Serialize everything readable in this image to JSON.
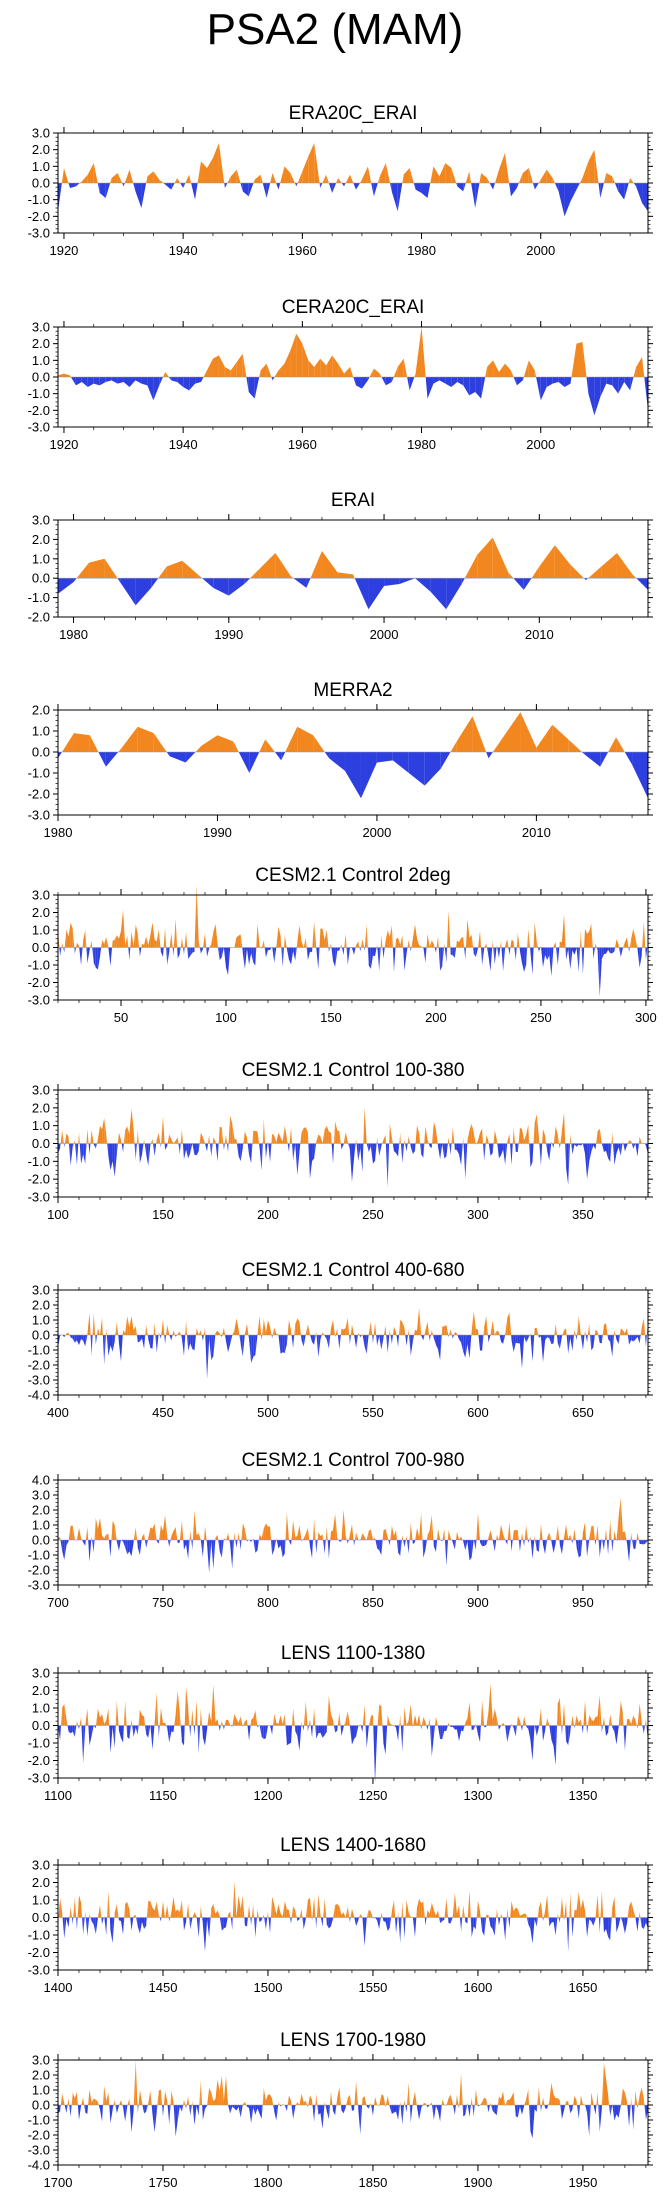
{
  "page_title": "PSA2 (MAM)",
  "colors": {
    "positive": "#F2861F",
    "negative": "#2E3FE0",
    "axis": "#000000"
  },
  "chart_data": [
    {
      "type": "area",
      "title": "ERA20C_ERAI",
      "xlim": [
        1919,
        2018
      ],
      "xticks": [
        1920,
        1940,
        1960,
        1980,
        2000
      ],
      "ylim": [
        -3.0,
        3.0
      ],
      "yticks": [
        3.0,
        2.0,
        1.0,
        0.0,
        -1.0,
        -2.0,
        -3.0
      ],
      "ytick_labels": [
        "3.0",
        "2.0",
        "1.0",
        "0.0",
        "-1.0",
        "-2.0",
        "-3.0"
      ],
      "x": [
        1919,
        1920,
        1921,
        1922,
        1923,
        1924,
        1925,
        1926,
        1927,
        1928,
        1929,
        1930,
        1931,
        1932,
        1933,
        1934,
        1935,
        1936,
        1937,
        1938,
        1939,
        1940,
        1941,
        1942,
        1943,
        1944,
        1945,
        1946,
        1947,
        1948,
        1949,
        1950,
        1951,
        1952,
        1953,
        1954,
        1955,
        1956,
        1957,
        1958,
        1959,
        1960,
        1961,
        1962,
        1963,
        1964,
        1965,
        1966,
        1967,
        1968,
        1969,
        1970,
        1971,
        1972,
        1973,
        1974,
        1975,
        1976,
        1977,
        1978,
        1979,
        1980,
        1981,
        1982,
        1983,
        1984,
        1985,
        1986,
        1987,
        1988,
        1989,
        1990,
        1991,
        1992,
        1993,
        1994,
        1995,
        1996,
        1997,
        1998,
        1999,
        2000,
        2001,
        2002,
        2003,
        2004,
        2005,
        2006,
        2007,
        2008,
        2009,
        2010,
        2011,
        2012,
        2013,
        2014,
        2015,
        2016,
        2017,
        2018
      ],
      "values": [
        -1.7,
        0.9,
        -0.3,
        -0.2,
        0.1,
        0.5,
        1.2,
        -0.6,
        -0.9,
        0.3,
        0.6,
        -0.2,
        0.8,
        -0.5,
        -1.5,
        0.4,
        0.7,
        0.2,
        -0.1,
        -0.4,
        0.3,
        -0.3,
        0.5,
        -1.0,
        1.3,
        0.9,
        1.5,
        2.4,
        -0.3,
        0.4,
        0.8,
        -0.5,
        -0.8,
        0.2,
        0.5,
        -0.9,
        0.6,
        -0.4,
        1.0,
        0.6,
        -0.2,
        0.7,
        1.6,
        2.4,
        -0.3,
        0.5,
        -0.6,
        0.3,
        -0.2,
        0.5,
        -0.4,
        0.2,
        1.0,
        -0.8,
        0.4,
        1.2,
        -0.5,
        -1.7,
        0.5,
        0.9,
        -0.4,
        -0.6,
        -0.9,
        1.0,
        0.4,
        1.2,
        0.9,
        -0.2,
        -0.5,
        0.7,
        -1.5,
        0.6,
        0.3,
        -0.4,
        0.8,
        1.8,
        -0.8,
        -0.3,
        0.6,
        0.9,
        -0.4,
        0.2,
        0.8,
        0.3,
        -0.5,
        -2.0,
        -1.1,
        -0.4,
        0.3,
        1.3,
        2.0,
        -0.9,
        0.6,
        0.4,
        -0.5,
        -1.0,
        0.3,
        -0.2,
        -1.2,
        -1.7
      ]
    },
    {
      "type": "area",
      "title": "CERA20C_ERAI",
      "xlim": [
        1919,
        2018
      ],
      "xticks": [
        1920,
        1940,
        1960,
        1980,
        2000
      ],
      "ylim": [
        -3.0,
        3.0
      ],
      "yticks": [
        3.0,
        2.0,
        1.0,
        0.0,
        -1.0,
        -2.0,
        -3.0
      ],
      "ytick_labels": [
        "3.0",
        "2.0",
        "1.0",
        "0.0",
        "-1.0",
        "-2.0",
        "-3.0"
      ],
      "x": [
        1919,
        1920,
        1921,
        1922,
        1923,
        1924,
        1925,
        1926,
        1927,
        1928,
        1929,
        1930,
        1931,
        1932,
        1933,
        1934,
        1935,
        1936,
        1937,
        1938,
        1939,
        1940,
        1941,
        1942,
        1943,
        1944,
        1945,
        1946,
        1947,
        1948,
        1949,
        1950,
        1951,
        1952,
        1953,
        1954,
        1955,
        1956,
        1957,
        1958,
        1959,
        1960,
        1961,
        1962,
        1963,
        1964,
        1965,
        1966,
        1967,
        1968,
        1969,
        1970,
        1971,
        1972,
        1973,
        1974,
        1975,
        1976,
        1977,
        1978,
        1979,
        1980,
        1981,
        1982,
        1983,
        1984,
        1985,
        1986,
        1987,
        1988,
        1989,
        1990,
        1991,
        1992,
        1993,
        1994,
        1995,
        1996,
        1997,
        1998,
        1999,
        2000,
        2001,
        2002,
        2003,
        2004,
        2005,
        2006,
        2007,
        2008,
        2009,
        2010,
        2011,
        2012,
        2013,
        2014,
        2015,
        2016,
        2017,
        2018
      ],
      "values": [
        0.1,
        0.2,
        0.1,
        -0.5,
        -0.3,
        -0.6,
        -0.4,
        -0.5,
        -0.3,
        -0.2,
        -0.4,
        -0.3,
        -0.6,
        -0.2,
        -0.4,
        -0.5,
        -1.4,
        -0.5,
        0.3,
        -0.2,
        -0.3,
        -0.6,
        -0.8,
        -0.4,
        -0.3,
        0.4,
        1.1,
        1.3,
        0.6,
        0.4,
        0.9,
        1.4,
        -0.9,
        -1.3,
        0.4,
        0.8,
        -0.2,
        0.4,
        0.8,
        1.6,
        2.6,
        2.0,
        1.0,
        0.6,
        1.1,
        0.7,
        1.3,
        0.8,
        0.2,
        0.6,
        -0.5,
        -0.7,
        -0.2,
        0.5,
        0.2,
        -0.5,
        -0.3,
        0.6,
        1.1,
        -0.8,
        0.2,
        3.0,
        -1.3,
        -0.4,
        -0.2,
        -0.4,
        -0.6,
        -0.3,
        -0.5,
        -1.1,
        -0.9,
        -1.3,
        0.6,
        1.0,
        0.3,
        0.8,
        0.4,
        -0.5,
        -0.2,
        1.0,
        0.4,
        -1.4,
        -0.6,
        -0.4,
        -0.3,
        -0.6,
        -0.4,
        2.0,
        2.1,
        -1.0,
        -2.3,
        -1.2,
        -0.4,
        -0.5,
        -1.0,
        -0.3,
        -0.8,
        0.6,
        1.2,
        -2.0
      ]
    },
    {
      "type": "area",
      "title": "ERAI",
      "xlim": [
        1979,
        2017
      ],
      "xticks": [
        1980,
        1990,
        2000,
        2010
      ],
      "ylim": [
        -2.0,
        3.0
      ],
      "yticks": [
        3.0,
        2.0,
        1.0,
        0.0,
        -1.0,
        -2.0
      ],
      "ytick_labels": [
        "3.0",
        "2.0",
        "1.0",
        "0.0",
        "-1.0",
        "-2.0"
      ],
      "x": [
        1979,
        1980,
        1981,
        1982,
        1983,
        1984,
        1985,
        1986,
        1987,
        1988,
        1989,
        1990,
        1991,
        1992,
        1993,
        1994,
        1995,
        1996,
        1997,
        1998,
        1999,
        2000,
        2001,
        2002,
        2003,
        2004,
        2005,
        2006,
        2007,
        2008,
        2009,
        2010,
        2011,
        2012,
        2013,
        2014,
        2015,
        2016,
        2017
      ],
      "values": [
        -0.8,
        -0.2,
        0.8,
        1.0,
        -0.2,
        -1.4,
        -0.5,
        0.6,
        0.9,
        0.2,
        -0.5,
        -0.9,
        -0.3,
        0.5,
        1.3,
        0.1,
        -0.5,
        1.4,
        0.3,
        0.2,
        -1.6,
        -0.4,
        -0.3,
        0.0,
        -0.7,
        -1.6,
        -0.3,
        1.2,
        2.1,
        0.3,
        -0.6,
        0.6,
        1.7,
        0.7,
        -0.1,
        0.6,
        1.3,
        0.2,
        -0.6
      ]
    },
    {
      "type": "area",
      "title": "MERRA2",
      "xlim": [
        1980,
        2017
      ],
      "xticks": [
        1980,
        1990,
        2000,
        2010
      ],
      "ylim": [
        -3.0,
        2.0
      ],
      "yticks": [
        2.0,
        1.0,
        0.0,
        -1.0,
        -2.0,
        -3.0
      ],
      "ytick_labels": [
        "2.0",
        "1.0",
        "0.0",
        "-1.0",
        "-2.0",
        "-3.0"
      ],
      "x": [
        1980,
        1981,
        1982,
        1983,
        1984,
        1985,
        1986,
        1987,
        1988,
        1989,
        1990,
        1991,
        1992,
        1993,
        1994,
        1995,
        1996,
        1997,
        1998,
        1999,
        2000,
        2001,
        2002,
        2003,
        2004,
        2005,
        2006,
        2007,
        2008,
        2009,
        2010,
        2011,
        2012,
        2013,
        2014,
        2015,
        2016,
        2017
      ],
      "values": [
        -0.3,
        0.9,
        0.8,
        -0.7,
        0.2,
        1.2,
        0.9,
        -0.2,
        -0.5,
        0.3,
        0.8,
        0.5,
        -1.0,
        0.6,
        -0.4,
        1.2,
        0.8,
        -0.3,
        -0.9,
        -2.2,
        -0.5,
        -0.4,
        -1.0,
        -1.6,
        -0.8,
        0.5,
        1.7,
        -0.3,
        0.8,
        1.9,
        0.2,
        1.3,
        0.6,
        -0.1,
        -0.7,
        0.7,
        -0.6,
        -2.2
      ]
    },
    {
      "type": "area",
      "title": "CESM2.1 Control 2deg",
      "xlim": [
        20,
        301
      ],
      "xticks": [
        50,
        100,
        150,
        200,
        250,
        300
      ],
      "ylim": [
        -3.0,
        3.0
      ],
      "yticks": [
        3.0,
        2.0,
        1.0,
        0.0,
        -1.0,
        -2.0,
        -3.0
      ],
      "ytick_labels": [
        "3.0",
        "2.0",
        "1.0",
        "0.0",
        "-1.0",
        "-2.0",
        "-3.0"
      ],
      "n": 282,
      "amplitude": 1.0,
      "seed": 5
    },
    {
      "type": "area",
      "title": "CESM2.1 Control 100-380",
      "xlim": [
        100,
        381
      ],
      "xticks": [
        100,
        150,
        200,
        250,
        300,
        350
      ],
      "ylim": [
        -3.0,
        3.0
      ],
      "yticks": [
        3.0,
        2.0,
        1.0,
        0.0,
        -1.0,
        -2.0,
        -3.0
      ],
      "ytick_labels": [
        "3.0",
        "2.0",
        "1.0",
        "0.0",
        "-1.0",
        "-2.0",
        "-3.0"
      ],
      "n": 282,
      "amplitude": 1.0,
      "seed": 6
    },
    {
      "type": "area",
      "title": "CESM2.1 Control 400-680",
      "xlim": [
        400,
        681
      ],
      "xticks": [
        400,
        450,
        500,
        550,
        600,
        650
      ],
      "ylim": [
        -4.0,
        3.0
      ],
      "yticks": [
        3.0,
        2.0,
        1.0,
        0.0,
        -1.0,
        -2.0,
        -3.0,
        -4.0
      ],
      "ytick_labels": [
        "3.0",
        "2.0",
        "1.0",
        "0.0",
        "-1.0",
        "-2.0",
        "-3.0",
        "-4.0"
      ],
      "n": 282,
      "amplitude": 1.0,
      "seed": 7
    },
    {
      "type": "area",
      "title": "CESM2.1 Control 700-980",
      "xlim": [
        700,
        981
      ],
      "xticks": [
        700,
        750,
        800,
        850,
        900,
        950
      ],
      "ylim": [
        -3.0,
        4.0
      ],
      "yticks": [
        4.0,
        3.0,
        2.0,
        1.0,
        0.0,
        -1.0,
        -2.0,
        -3.0
      ],
      "ytick_labels": [
        "4.0",
        "3.0",
        "2.0",
        "1.0",
        "0.0",
        "-1.0",
        "-2.0",
        "-3.0"
      ],
      "n": 282,
      "amplitude": 1.0,
      "seed": 8
    },
    {
      "type": "area",
      "title": "LENS 1100-1380",
      "xlim": [
        1100,
        1381
      ],
      "xticks": [
        1100,
        1150,
        1200,
        1250,
        1300,
        1350
      ],
      "ylim": [
        -3.0,
        3.0
      ],
      "yticks": [
        3.0,
        2.0,
        1.0,
        0.0,
        -1.0,
        -2.0,
        -3.0
      ],
      "ytick_labels": [
        "3.0",
        "2.0",
        "1.0",
        "0.0",
        "-1.0",
        "-2.0",
        "-3.0"
      ],
      "n": 282,
      "amplitude": 1.0,
      "seed": 9
    },
    {
      "type": "area",
      "title": "LENS 1400-1680",
      "xlim": [
        1400,
        1681
      ],
      "xticks": [
        1400,
        1450,
        1500,
        1550,
        1600,
        1650
      ],
      "ylim": [
        -3.0,
        3.0
      ],
      "yticks": [
        3.0,
        2.0,
        1.0,
        0.0,
        -1.0,
        -2.0,
        -3.0
      ],
      "ytick_labels": [
        "3.0",
        "2.0",
        "1.0",
        "0.0",
        "-1.0",
        "-2.0",
        "-3.0"
      ],
      "n": 282,
      "amplitude": 1.0,
      "seed": 10
    },
    {
      "type": "area",
      "title": "LENS 1700-1980",
      "xlim": [
        1700,
        1981
      ],
      "xticks": [
        1700,
        1750,
        1800,
        1850,
        1900,
        1950
      ],
      "ylim": [
        -4.0,
        3.0
      ],
      "yticks": [
        3.0,
        2.0,
        1.0,
        0.0,
        -1.0,
        -2.0,
        -3.0,
        -4.0
      ],
      "ytick_labels": [
        "3.0",
        "2.0",
        "1.0",
        "0.0",
        "-1.0",
        "-2.0",
        "-3.0",
        "-4.0"
      ],
      "n": 282,
      "amplitude": 1.0,
      "seed": 11
    }
  ]
}
